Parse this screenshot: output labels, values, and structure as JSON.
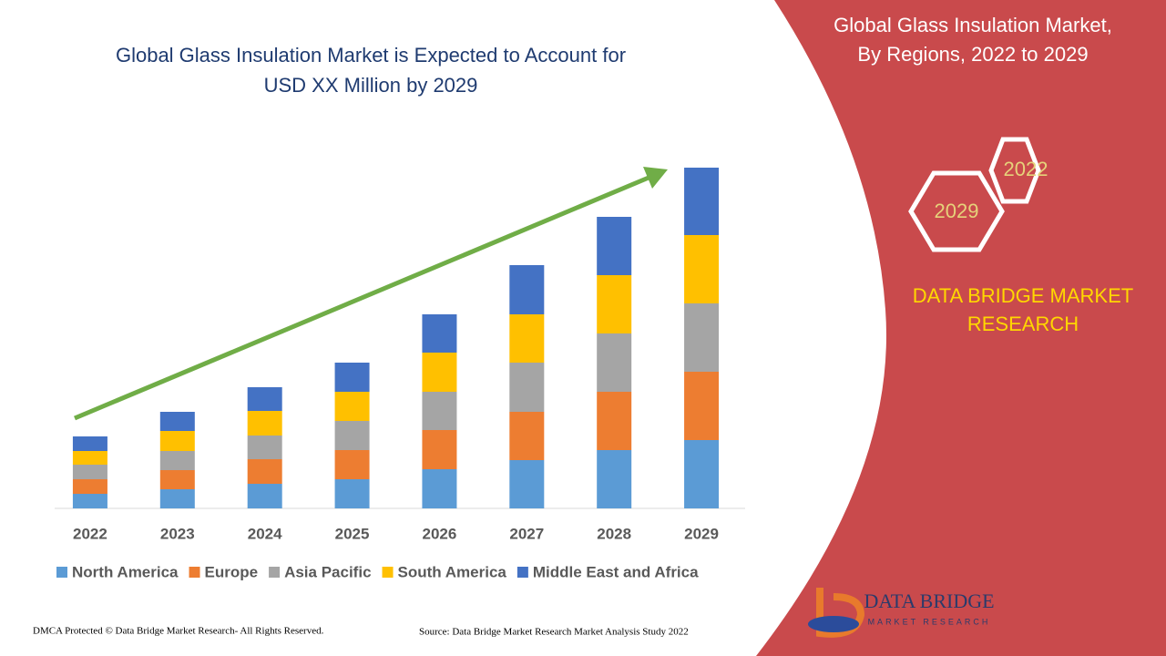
{
  "chart_data": {
    "type": "stacked-bar",
    "title": "Global Glass Insulation Market is Expected to Account for USD XX Million by 2029",
    "categories": [
      "2022",
      "2023",
      "2024",
      "2025",
      "2026",
      "2027",
      "2028",
      "2029"
    ],
    "series": [
      {
        "name": "North America",
        "color": "#5b9bd5",
        "values": [
          16,
          21,
          27,
          32,
          43,
          53,
          64,
          75
        ]
      },
      {
        "name": "Europe",
        "color": "#ed7d31",
        "values": [
          16,
          21,
          27,
          32,
          43,
          53,
          64,
          75
        ]
      },
      {
        "name": "Asia Pacific",
        "color": "#a5a5a5",
        "values": [
          16,
          21,
          26,
          32,
          42,
          54,
          64,
          75
        ]
      },
      {
        "name": "South America",
        "color": "#ffc000",
        "values": [
          15,
          22,
          27,
          32,
          43,
          53,
          64,
          75
        ]
      },
      {
        "name": "Middle East and Africa",
        "color": "#4472c4",
        "values": [
          16,
          21,
          26,
          32,
          42,
          54,
          64,
          74
        ]
      }
    ]
  },
  "panel": {
    "title_line1": "Global Glass Insulation Market,",
    "title_line2": "By Regions, 2022 to 2029",
    "hex_top": "2022",
    "hex_bottom": "2029",
    "brand_line1": "DATA BRIDGE MARKET",
    "brand_line2": "RESEARCH",
    "logo_name": "DATA BRIDGE",
    "logo_sub": "MARKET RESEARCH"
  },
  "footer": {
    "left": "DMCA Protected © Data Bridge Market Research- All Rights Reserved.",
    "right": "Source: Data Bridge Market Research Market Analysis Study 2022"
  }
}
